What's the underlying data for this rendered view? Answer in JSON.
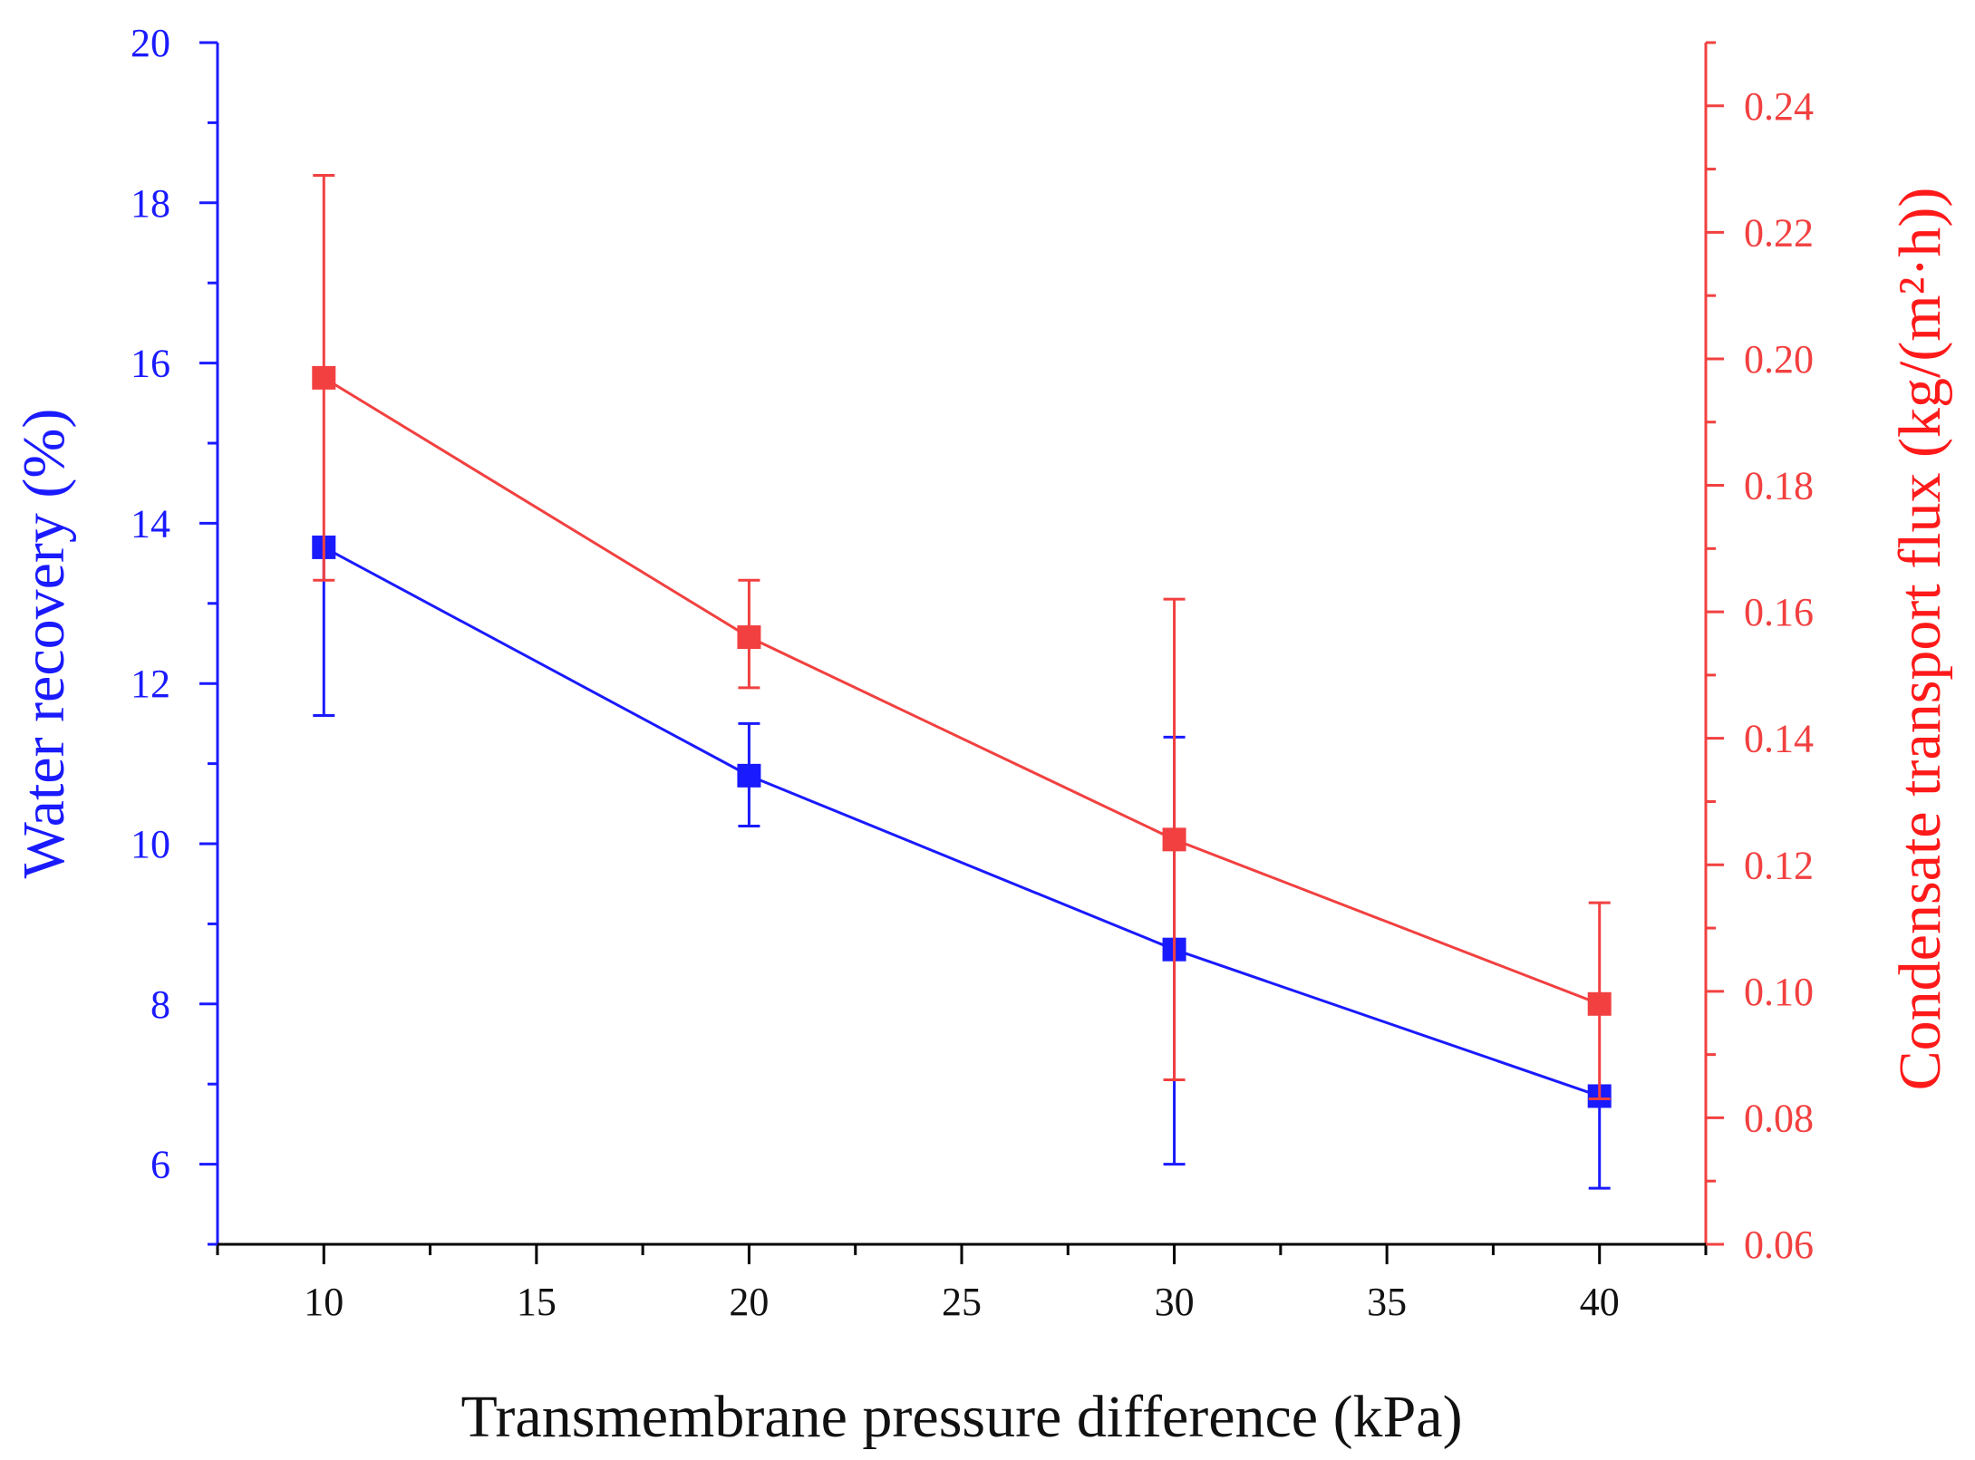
{
  "chart_data": {
    "type": "line",
    "xlabel": "Transmembrane pressure difference (kPa)",
    "ylabel": "Water recovery (%)",
    "y2label": "Condensate transport flux (kg/(m²·h))",
    "xlim": [
      7.5,
      42.5
    ],
    "ylim": [
      5,
      20
    ],
    "y2lim": [
      0.06,
      0.25
    ],
    "xticks": [
      10,
      15,
      20,
      25,
      30,
      35,
      40
    ],
    "yticks": [
      6,
      8,
      10,
      12,
      14,
      16,
      18,
      20
    ],
    "y2ticks": [
      "0.06",
      "0.08",
      "0.10",
      "0.12",
      "0.14",
      "0.16",
      "0.18",
      "0.20",
      "0.22",
      "0.24"
    ],
    "grid": false,
    "legend": "none",
    "series": [
      {
        "axis": "left",
        "color": "#1a1aff",
        "x": [
          10,
          20,
          30,
          40
        ],
        "y": [
          13.7,
          10.85,
          8.68,
          6.85
        ],
        "err_low": [
          11.6,
          10.22,
          6.0,
          5.7
        ],
        "err_high": [
          13.7,
          11.5,
          11.33,
          6.85
        ]
      },
      {
        "axis": "right",
        "color": "#f24040",
        "x": [
          10,
          20,
          30,
          40
        ],
        "y": [
          0.197,
          0.156,
          0.124,
          0.098
        ],
        "err_low": [
          0.165,
          0.148,
          0.086,
          0.083
        ],
        "err_high": [
          0.229,
          0.165,
          0.162,
          0.114
        ]
      }
    ]
  }
}
